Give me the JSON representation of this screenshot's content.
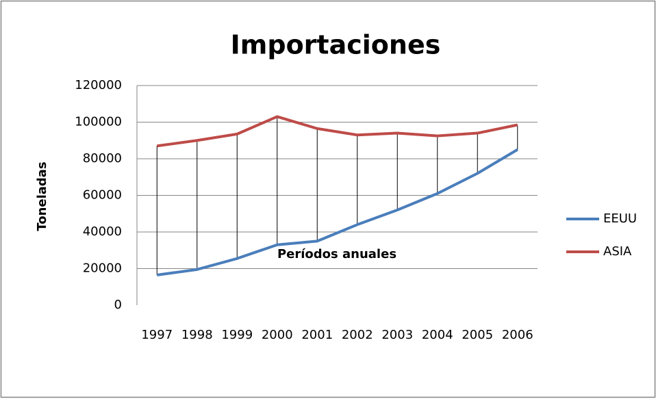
{
  "chart_data": {
    "type": "line",
    "title": "Importaciones",
    "x_label": "Períodos anuales",
    "y_label": "Toneladas",
    "categories": [
      "1997",
      "1998",
      "1999",
      "2000",
      "2001",
      "2002",
      "2003",
      "2004",
      "2005",
      "2006"
    ],
    "series": [
      {
        "name": "EEUU",
        "color": "#4a7ebb",
        "values": [
          16500,
          19500,
          25500,
          33000,
          35000,
          44000,
          52000,
          61000,
          72000,
          85000
        ]
      },
      {
        "name": "ASIA",
        "color": "#be4b48",
        "values": [
          87000,
          90000,
          93500,
          103000,
          96500,
          93000,
          94000,
          92500,
          94000,
          98500
        ]
      }
    ],
    "ylim": [
      0,
      120000
    ],
    "yticks": [
      0,
      20000,
      40000,
      60000,
      80000,
      100000,
      120000
    ],
    "grid": true,
    "drop_lines": true,
    "legend": "right"
  }
}
